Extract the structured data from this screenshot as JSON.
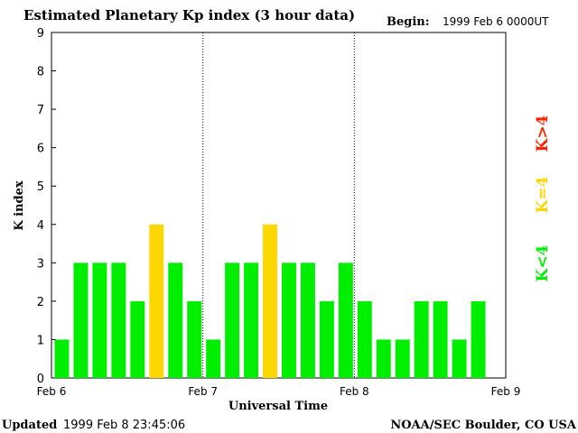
{
  "chart_data": {
    "type": "bar",
    "title": "Estimated Planetary Kp index (3 hour data)",
    "begin": {
      "label": "Begin:",
      "value": "1999 Feb 6 0000UT"
    },
    "ylabel": "K index",
    "xlabel": "Universal Time",
    "ylim": [
      0,
      9
    ],
    "yticks": [
      "0",
      "1",
      "2",
      "3",
      "4",
      "5",
      "6",
      "7",
      "8",
      "9"
    ],
    "xticks": [
      "Feb 6",
      "Feb 7",
      "Feb 8",
      "Feb 9"
    ],
    "values": [
      1,
      3,
      3,
      3,
      2,
      4,
      3,
      2,
      1,
      3,
      3,
      4,
      3,
      3,
      2,
      3,
      2,
      1,
      1,
      2,
      2,
      1,
      2
    ],
    "legend": [
      {
        "label": "K<4",
        "color": "#00ee00"
      },
      {
        "label": "K=4",
        "color": "#ffd700"
      },
      {
        "label": "K>4",
        "color": "#ff2200"
      }
    ],
    "colors": {
      "low": "#00ee00",
      "equal": "#ffd700",
      "high": "#ff2200"
    }
  },
  "footer": {
    "updated_label": "Updated",
    "updated_value": "1999 Feb  8 23:45:06",
    "source": "NOAA/SEC Boulder, CO USA"
  }
}
